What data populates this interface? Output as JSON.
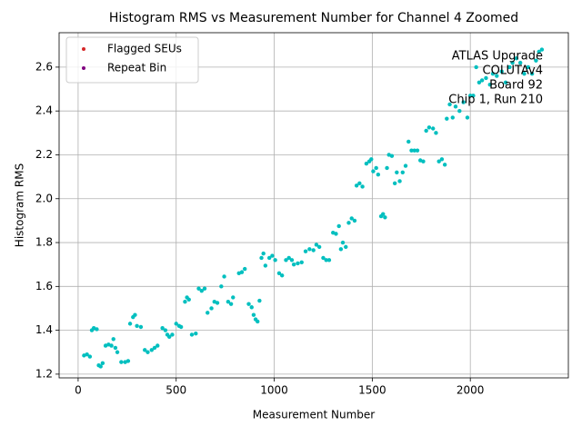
{
  "chart_data": {
    "type": "scatter",
    "title": "Histogram RMS vs Measurement Number for Channel 4 Zoomed",
    "x_label": "Measurement Number",
    "y_label": "Histogram RMS",
    "xlim": [
      -97,
      2500
    ],
    "ylim": [
      1.183,
      2.757
    ],
    "xticks": [
      0,
      500,
      1000,
      1500,
      2000
    ],
    "yticks": [
      {
        "value": 1.2,
        "label": "1.2"
      },
      {
        "value": 1.4,
        "label": "1.4"
      },
      {
        "value": 1.6,
        "label": "1.6"
      },
      {
        "value": 1.8,
        "label": "1.8"
      },
      {
        "value": 2.0,
        "label": "2.0"
      },
      {
        "value": 2.2,
        "label": "2.2"
      },
      {
        "value": 2.4,
        "label": "2.4"
      },
      {
        "value": 2.6,
        "label": "2.6"
      }
    ],
    "grid": true,
    "legend_position": "upper left",
    "legend": [
      {
        "name": "Flagged SEUs",
        "color": "#d62728"
      },
      {
        "name": "Repeat Bin",
        "color": "#800080"
      }
    ],
    "annotation": [
      "ATLAS Upgrade",
      "COLUTAv4",
      "Board 92",
      "Chip 1, Run 210"
    ],
    "series": [
      {
        "color": "#00bfbf",
        "x": [
          30,
          45,
          60,
          70,
          80,
          95,
          105,
          115,
          125,
          140,
          155,
          170,
          180,
          190,
          200,
          220,
          240,
          255,
          265,
          280,
          290,
          300,
          320,
          340,
          355,
          375,
          390,
          405,
          430,
          445,
          455,
          465,
          480,
          500,
          515,
          525,
          545,
          555,
          565,
          580,
          600,
          615,
          630,
          645,
          660,
          680,
          695,
          710,
          730,
          745,
          765,
          780,
          790,
          820,
          835,
          850,
          870,
          885,
          895,
          905,
          915,
          925,
          935,
          945,
          955,
          975,
          990,
          1005,
          1025,
          1040,
          1060,
          1075,
          1090,
          1100,
          1120,
          1140,
          1160,
          1180,
          1200,
          1215,
          1230,
          1250,
          1265,
          1280,
          1300,
          1315,
          1330,
          1340,
          1350,
          1365,
          1380,
          1395,
          1410,
          1420,
          1435,
          1450,
          1470,
          1485,
          1495,
          1505,
          1520,
          1530,
          1545,
          1555,
          1565,
          1575,
          1585,
          1600,
          1615,
          1625,
          1640,
          1655,
          1670,
          1685,
          1700,
          1715,
          1730,
          1745,
          1760,
          1775,
          1790,
          1810,
          1825,
          1840,
          1855,
          1870,
          1880,
          1895,
          1910,
          1925,
          1945,
          1965,
          1985,
          2000,
          2015,
          2030,
          2045,
          2060,
          2080,
          2100,
          2115,
          2135,
          2160,
          2180,
          2200,
          2215,
          2235,
          2255,
          2275,
          2295,
          2315,
          2335,
          2350,
          2365
        ],
        "values": [
          1.285,
          1.29,
          1.28,
          1.4,
          1.41,
          1.405,
          1.24,
          1.235,
          1.25,
          1.33,
          1.335,
          1.33,
          1.36,
          1.32,
          1.3,
          1.255,
          1.255,
          1.26,
          1.43,
          1.46,
          1.47,
          1.42,
          1.415,
          1.31,
          1.3,
          1.31,
          1.32,
          1.33,
          1.41,
          1.4,
          1.38,
          1.37,
          1.38,
          1.43,
          1.42,
          1.415,
          1.53,
          1.55,
          1.54,
          1.38,
          1.385,
          1.59,
          1.58,
          1.59,
          1.48,
          1.5,
          1.53,
          1.525,
          1.6,
          1.645,
          1.53,
          1.52,
          1.55,
          1.66,
          1.665,
          1.68,
          1.52,
          1.505,
          1.47,
          1.45,
          1.44,
          1.535,
          1.73,
          1.75,
          1.695,
          1.73,
          1.74,
          1.72,
          1.66,
          1.65,
          1.72,
          1.73,
          1.72,
          1.7,
          1.705,
          1.71,
          1.76,
          1.77,
          1.765,
          1.79,
          1.78,
          1.73,
          1.72,
          1.72,
          1.845,
          1.84,
          1.875,
          1.77,
          1.8,
          1.78,
          1.89,
          1.91,
          1.9,
          2.06,
          2.07,
          2.055,
          2.16,
          2.17,
          2.18,
          2.125,
          2.14,
          2.11,
          1.92,
          1.93,
          1.915,
          2.14,
          2.2,
          2.195,
          2.07,
          2.12,
          2.08,
          2.12,
          2.15,
          2.26,
          2.22,
          2.22,
          2.22,
          2.175,
          2.17,
          2.31,
          2.325,
          2.32,
          2.3,
          2.17,
          2.18,
          2.155,
          2.365,
          2.43,
          2.37,
          2.42,
          2.4,
          2.44,
          2.37,
          2.47,
          2.47,
          2.6,
          2.53,
          2.54,
          2.55,
          2.52,
          2.57,
          2.56,
          2.58,
          2.53,
          2.6,
          2.62,
          2.64,
          2.62,
          2.57,
          2.6,
          2.57,
          2.63,
          2.67,
          2.68
        ]
      }
    ]
  }
}
